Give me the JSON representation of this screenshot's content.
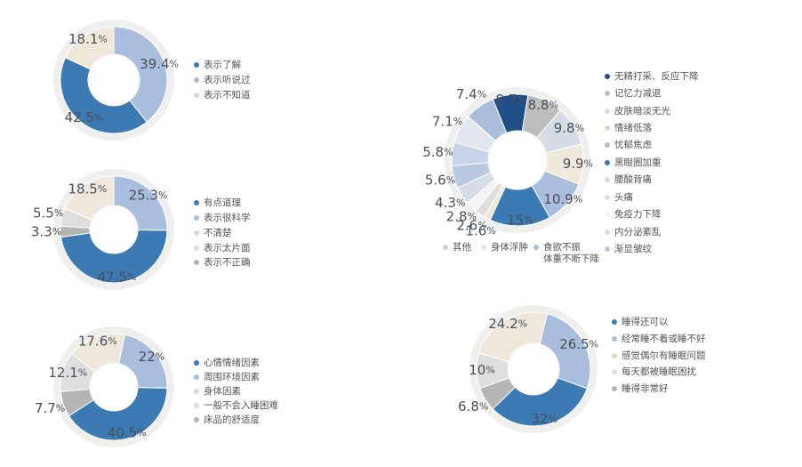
{
  "chart_data": [
    {
      "type": "donut",
      "categories": [
        "表示了解",
        "表示听说过",
        "表示不知道"
      ],
      "values": [
        42.5,
        39.4,
        18.1
      ],
      "value_labels": [
        "42.5%",
        "39.4%",
        "18.1%"
      ],
      "colors": [
        "#3b7ab3",
        "#a9bddc",
        "#efe8da"
      ]
    },
    {
      "type": "donut",
      "categories": [
        "有点道理",
        "表示很科学",
        "不清楚",
        "表示太片面",
        "表示不正确"
      ],
      "values": [
        47.5,
        25.3,
        18.5,
        5.5,
        3.3
      ],
      "value_labels": [
        "47.5%",
        "25.3%",
        "18.5%",
        "5.5%",
        "3.3%"
      ],
      "colors": [
        "#3b7ab3",
        "#a9bddc",
        "#efe8da",
        "#dedede",
        "#b5b5b5"
      ]
    },
    {
      "type": "donut",
      "categories": [
        "心情情绪因素",
        "周围环境因素",
        "身体因素",
        "一般不会入睡困难",
        "床品的舒适度"
      ],
      "values": [
        40.5,
        22,
        17.6,
        12.1,
        7.7
      ],
      "value_labels": [
        "40.5%",
        "22%",
        "17.6%",
        "12.1%",
        "7.7%"
      ],
      "colors": [
        "#3b7ab3",
        "#a9bddc",
        "#efe8da",
        "#dedede",
        "#b5b5b5"
      ]
    },
    {
      "type": "donut",
      "categories": [
        "无精打采、反应下降",
        "记忆力减退",
        "皮肤暗淡无光",
        "情绪低落",
        "忧郁焦虑",
        "黑眼圈加重",
        "腰酸背痛",
        "头痛",
        "免疫力下降",
        "内分泌紊乱",
        "渐显皱纹",
        "其他",
        "身体浮肿",
        "食欲不振\n体重不断下降"
      ],
      "values": [
        8.7,
        8.8,
        9.8,
        9.9,
        10.9,
        15,
        1.6,
        2.6,
        2.8,
        4.3,
        5.6,
        5.8,
        7.1,
        7.4
      ],
      "value_labels": [
        "8.7%",
        "8.8%",
        "9.8%",
        "9.9%",
        "10.9%",
        "15%",
        "1.6%",
        "2.6%",
        "2.8%",
        "4.3%",
        "5.6%",
        "5.8%",
        "7.1%",
        "7.4%"
      ],
      "colors": [
        "#1f4f86",
        "#bdbdbd",
        "#d6dce6",
        "#efe9dc",
        "#a9bddc",
        "#3b7ab3",
        "#efe8da",
        "#dedede",
        "#f4f4f4",
        "#d6dce6",
        "#b9c9e2",
        "#c6d3e8",
        "#e2e6ee",
        "#a9bddc"
      ]
    },
    {
      "type": "donut",
      "categories": [
        "睡得还可以",
        "经常睡不着或睡不好",
        "感觉偶尔有睡眠问题",
        "每天都被睡眠困扰",
        "睡得非常好"
      ],
      "values": [
        32,
        26.5,
        24.2,
        10,
        6.8
      ],
      "value_labels": [
        "32%",
        "26.5%",
        "24.2%",
        "10%",
        "6.8%"
      ],
      "colors": [
        "#3b7ab3",
        "#a9bddc",
        "#efe8da",
        "#dedede",
        "#b5b5b5"
      ]
    }
  ]
}
